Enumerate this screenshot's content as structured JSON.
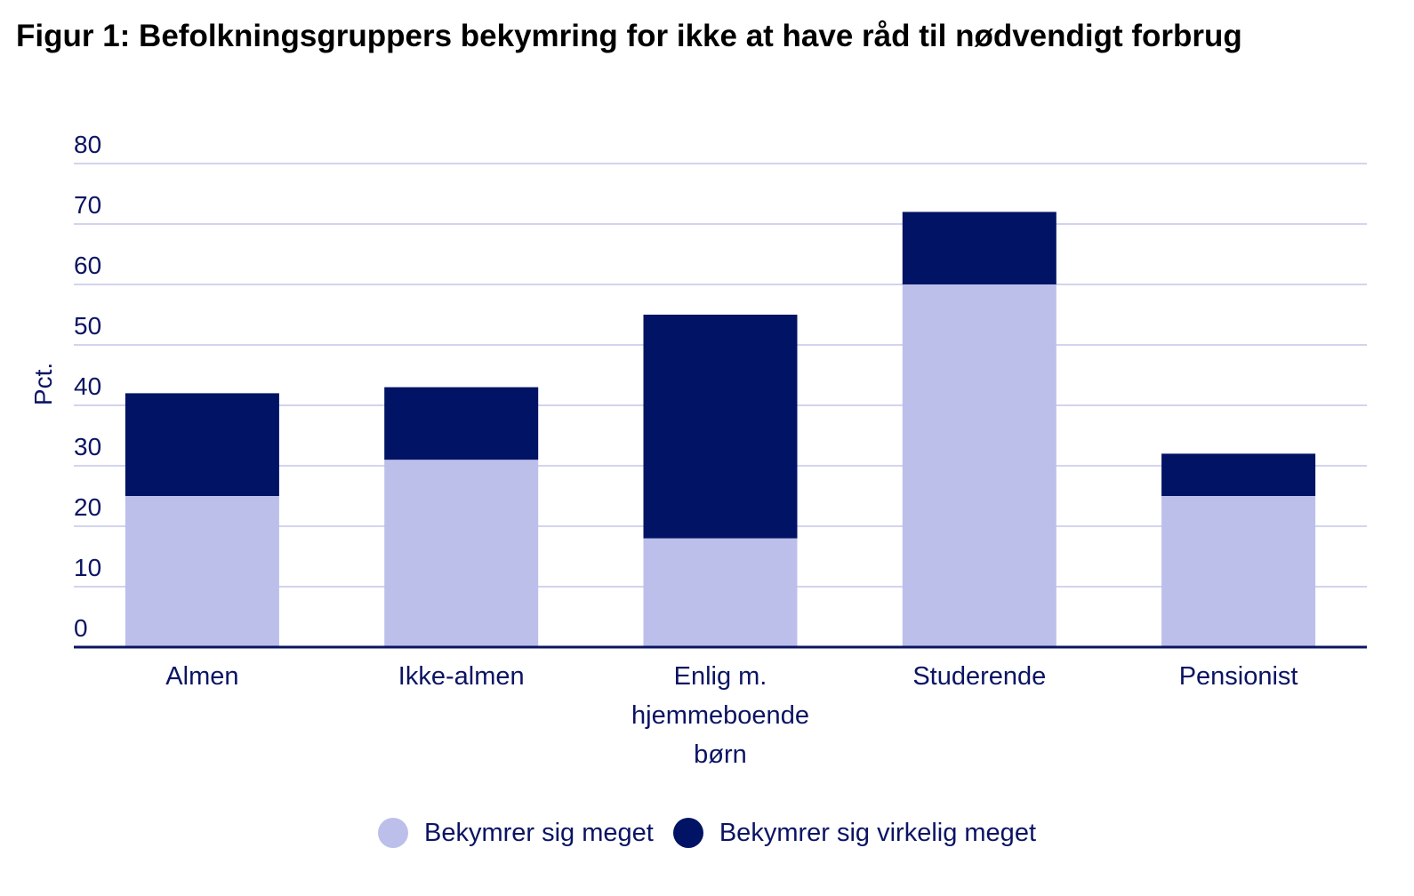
{
  "chart_data": {
    "type": "bar",
    "stacked": true,
    "title": "Figur 1: Befolkningsgruppers bekymring for ikke at have råd til nødvendigt forbrug",
    "xlabel": "",
    "ylabel": "Pct.",
    "ylim": [
      0,
      80
    ],
    "yticks": [
      0,
      10,
      20,
      30,
      40,
      50,
      60,
      70,
      80
    ],
    "grid": true,
    "legend_position": "bottom",
    "categories": [
      "Almen",
      "Ikke-almen",
      "Enlig m. hjemmeboende børn",
      "Studerende",
      "Pensionist"
    ],
    "category_lines": [
      [
        "Almen"
      ],
      [
        "Ikke-almen"
      ],
      [
        "Enlig m.",
        "hjemmeboende",
        "børn"
      ],
      [
        "Studerende"
      ],
      [
        "Pensionist"
      ]
    ],
    "series": [
      {
        "name": "Bekymrer sig meget",
        "color": "#bcbfea",
        "values": [
          25,
          31,
          18,
          60,
          25
        ]
      },
      {
        "name": "Bekymrer sig virkelig meget",
        "color": "#001364",
        "values": [
          17,
          12,
          37,
          12,
          7
        ]
      }
    ]
  }
}
